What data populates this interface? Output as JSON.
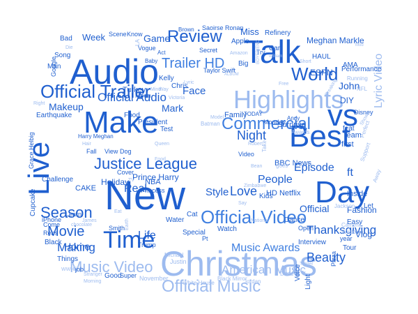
{
  "palette": {
    "dark": "#1f5fcf",
    "mid": "#3f7fe0",
    "light": "#9dbbef",
    "pale": "#c3d5f4"
  },
  "words": [
    {
      "t": "Christmas",
      "c": "light"
    },
    {
      "t": "New",
      "c": "dark"
    },
    {
      "t": "Best",
      "c": "dark"
    },
    {
      "t": "Talk",
      "c": "dark"
    },
    {
      "t": "Audio",
      "c": "dark"
    },
    {
      "t": "Make",
      "c": "dark"
    },
    {
      "t": "Highlights",
      "c": "light"
    },
    {
      "t": "Live",
      "c": "dark"
    },
    {
      "t": "vs",
      "c": "dark"
    },
    {
      "t": "Day",
      "c": "dark"
    },
    {
      "t": "Time",
      "c": "dark"
    },
    {
      "t": "Official Trailer",
      "c": "dark"
    },
    {
      "t": "Official Video",
      "c": "mid"
    },
    {
      "t": "Official Music",
      "c": "light"
    },
    {
      "t": "Music Video",
      "c": "light"
    },
    {
      "t": "Commercial",
      "c": "mid"
    },
    {
      "t": "Justice League",
      "c": "dark"
    },
    {
      "t": "Review",
      "c": "dark"
    },
    {
      "t": "World",
      "c": "dark"
    },
    {
      "t": "Trailer HD",
      "c": "mid"
    },
    {
      "t": "Season",
      "c": "dark"
    },
    {
      "t": "Movie",
      "c": "dark"
    },
    {
      "t": "Night",
      "c": "dark"
    },
    {
      "t": "Beauty",
      "c": "dark"
    },
    {
      "t": "Thanksgiving",
      "c": "dark"
    },
    {
      "t": "Love",
      "c": "dark"
    },
    {
      "t": "Music Awards",
      "c": "mid"
    },
    {
      "t": "American Music",
      "c": "light"
    },
    {
      "t": "Lyric Video",
      "c": "light"
    },
    {
      "t": "Episode",
      "c": "dark"
    },
    {
      "t": "People",
      "c": "dark"
    },
    {
      "t": "Official Audio",
      "c": "dark"
    },
    {
      "t": "Makeup",
      "c": "dark"
    },
    {
      "t": "Making",
      "c": "dark"
    },
    {
      "t": "Real",
      "c": "dark"
    },
    {
      "t": "Life",
      "c": "dark"
    },
    {
      "t": "Home",
      "c": "dark"
    },
    {
      "t": "Prince Harry",
      "c": "dark"
    },
    {
      "t": "Holiday",
      "c": "dark"
    },
    {
      "t": "Mark",
      "c": "dark"
    },
    {
      "t": "John",
      "c": "dark"
    },
    {
      "t": "Face",
      "c": "dark"
    },
    {
      "t": "Style",
      "c": "dark"
    },
    {
      "t": "Game",
      "c": "dark"
    },
    {
      "t": "Week",
      "c": "dark"
    },
    {
      "t": "Miss",
      "c": "dark"
    },
    {
      "t": "ESPN",
      "c": "dark"
    },
    {
      "t": "Meghan Markle",
      "c": "dark"
    },
    {
      "t": "Taylor Swift",
      "c": "dark"
    },
    {
      "t": "Family",
      "c": "dark"
    },
    {
      "t": "Turkey",
      "c": "dark"
    },
    {
      "t": "NBA",
      "c": "dark"
    },
    {
      "t": "CAKE",
      "c": "dark"
    },
    {
      "t": "BBC News",
      "c": "dark"
    },
    {
      "t": "HD Netflix",
      "c": "dark"
    },
    {
      "t": "Fashion",
      "c": "dark"
    },
    {
      "t": "Inside",
      "c": "dark"
    },
    {
      "t": "DIY",
      "c": "dark"
    },
    {
      "t": "Disney",
      "c": "dark"
    },
    {
      "t": "Vlog",
      "c": "dark"
    },
    {
      "t": "Easy",
      "c": "dark"
    },
    {
      "t": "Let",
      "c": "dark"
    },
    {
      "t": "Team",
      "c": "dark"
    },
    {
      "t": "first",
      "c": "dark"
    },
    {
      "t": "feat",
      "c": "dark"
    },
    {
      "t": "ft",
      "c": "dark"
    },
    {
      "t": "Official",
      "c": "dark"
    },
    {
      "t": "Performance",
      "c": "dark"
    },
    {
      "t": "AMA",
      "c": "dark"
    },
    {
      "t": "HAUL",
      "c": "dark"
    },
    {
      "t": "Refinery",
      "c": "dark"
    },
    {
      "t": "Car",
      "c": "dark"
    },
    {
      "t": "Apple",
      "c": "dark"
    },
    {
      "t": "Secret",
      "c": "dark"
    },
    {
      "t": "Big",
      "c": "dark"
    },
    {
      "t": "Try",
      "c": "dark"
    },
    {
      "t": "Saoirse Ronan",
      "c": "dark"
    },
    {
      "t": "Brown",
      "c": "dark"
    },
    {
      "t": "Scene",
      "c": "dark"
    },
    {
      "t": "Know",
      "c": "dark"
    },
    {
      "t": "Vogue",
      "c": "dark"
    },
    {
      "t": "Act",
      "c": "dark"
    },
    {
      "t": "Baby",
      "c": "dark"
    },
    {
      "t": "Kelly",
      "c": "dark"
    },
    {
      "t": "Chris",
      "c": "dark"
    },
    {
      "t": "Moon",
      "c": "dark"
    },
    {
      "t": "Food",
      "c": "dark"
    },
    {
      "t": "President",
      "c": "dark"
    },
    {
      "t": "Test",
      "c": "dark"
    },
    {
      "t": "Dog",
      "c": "dark"
    },
    {
      "t": "View",
      "c": "dark"
    },
    {
      "t": "Fall",
      "c": "dark"
    },
    {
      "t": "Harry Meghan",
      "c": "dark"
    },
    {
      "t": "Challenge",
      "c": "dark"
    },
    {
      "t": "Grace Helbig",
      "c": "dark"
    },
    {
      "t": "Earthquake",
      "c": "dark"
    },
    {
      "t": "Bad",
      "c": "dark"
    },
    {
      "t": "Song",
      "c": "dark"
    },
    {
      "t": "Man",
      "c": "dark"
    },
    {
      "t": "Google",
      "c": "dark"
    },
    {
      "t": "Cupcake",
      "c": "dark"
    },
    {
      "t": "Learn",
      "c": "dark"
    },
    {
      "t": "iPhone",
      "c": "dark"
    },
    {
      "t": "Come",
      "c": "dark"
    },
    {
      "t": "Rebs",
      "c": "dark"
    },
    {
      "t": "Black",
      "c": "dark"
    },
    {
      "t": "Things",
      "c": "dark"
    },
    {
      "t": "job",
      "c": "dark"
    },
    {
      "t": "Good",
      "c": "dark"
    },
    {
      "t": "Super",
      "c": "dark"
    },
    {
      "t": "Trump",
      "c": "dark"
    },
    {
      "t": "Smith",
      "c": "dark"
    },
    {
      "t": "Cover",
      "c": "dark"
    },
    {
      "t": "Princess",
      "c": "dark"
    },
    {
      "t": "Cat",
      "c": "dark"
    },
    {
      "t": "Water",
      "c": "dark"
    },
    {
      "t": "Special",
      "c": "dark"
    },
    {
      "t": "Watch",
      "c": "dark"
    },
    {
      "t": "Pt",
      "c": "dark"
    },
    {
      "t": "Kids",
      "c": "dark"
    },
    {
      "t": "Dance",
      "c": "dark"
    },
    {
      "t": "Open",
      "c": "dark"
    },
    {
      "t": "Interview",
      "c": "dark"
    },
    {
      "t": "Voice",
      "c": "dark"
    },
    {
      "t": "Light",
      "c": "dark"
    },
    {
      "t": "Tour",
      "c": "dark"
    },
    {
      "t": "year",
      "c": "dark"
    },
    {
      "t": "Pizza",
      "c": "dark"
    },
    {
      "t": "Surprise",
      "c": "dark"
    },
    {
      "t": "Video",
      "c": "dark"
    },
    {
      "t": "Monday",
      "c": "dark"
    },
    {
      "t": "Andy",
      "c": "dark"
    },
    {
      "t": "TODAY",
      "c": "dark"
    },
    {
      "t": "Batman",
      "c": "light"
    },
    {
      "t": "November",
      "c": "light"
    },
    {
      "t": "White House",
      "c": "light"
    },
    {
      "t": "Black Mirror",
      "c": "light"
    },
    {
      "t": "Michael",
      "c": "light"
    },
    {
      "t": "Justin",
      "c": "light"
    },
    {
      "t": "Jordan",
      "c": "light"
    },
    {
      "t": "Dead",
      "c": "light"
    },
    {
      "t": "Stranger",
      "c": "light"
    },
    {
      "t": "Morning",
      "c": "light"
    },
    {
      "t": "WWHL",
      "c": "light"
    },
    {
      "t": "Jackson",
      "c": "light"
    },
    {
      "t": "Perfect",
      "c": "light"
    },
    {
      "t": "Support",
      "c": "light"
    },
    {
      "t": "Away",
      "c": "light"
    },
    {
      "t": "Camera",
      "c": "light"
    },
    {
      "t": "Wedding",
      "c": "light"
    },
    {
      "t": "NFL",
      "c": "light"
    },
    {
      "t": "Running",
      "c": "light"
    },
    {
      "t": "Breaking",
      "c": "light"
    },
    {
      "t": "Shows",
      "c": "light"
    },
    {
      "t": "Awards",
      "c": "light"
    },
    {
      "t": "Robert",
      "c": "light"
    },
    {
      "t": "Zimbabwe",
      "c": "light"
    },
    {
      "t": "National",
      "c": "light"
    },
    {
      "t": "Queen",
      "c": "light"
    },
    {
      "t": "Victoria",
      "c": "light"
    },
    {
      "t": "Right",
      "c": "light"
    },
    {
      "t": "Die",
      "c": "light"
    },
    {
      "t": "Lyric",
      "c": "light"
    },
    {
      "t": "Mind",
      "c": "light"
    },
    {
      "t": "Way",
      "c": "light"
    },
    {
      "t": "Free",
      "c": "light"
    },
    {
      "t": "Short",
      "c": "light"
    },
    {
      "t": "Amazon",
      "c": "light"
    },
    {
      "t": "William",
      "c": "light"
    },
    {
      "t": "Say",
      "c": "light"
    },
    {
      "t": "Take",
      "c": "light"
    },
    {
      "t": "Model",
      "c": "light"
    },
    {
      "t": "goes",
      "c": "light"
    },
    {
      "t": "Hair",
      "c": "light"
    },
    {
      "t": "James",
      "c": "light"
    },
    {
      "t": "chocolate",
      "c": "light"
    },
    {
      "t": "Eat",
      "c": "light"
    },
    {
      "t": "Earth",
      "c": "light"
    },
    {
      "t": "TV",
      "c": "light"
    },
    {
      "t": "LA",
      "c": "light"
    },
    {
      "t": "Bean",
      "c": "light"
    },
    {
      "t": "ALBUM",
      "c": "light"
    },
    {
      "t": "BOYFRIEND",
      "c": "light"
    },
    {
      "t": "Food",
      "c": "light"
    },
    {
      "t": "Trailer",
      "c": "light"
    },
    {
      "t": "Mod",
      "c": "light"
    }
  ]
}
